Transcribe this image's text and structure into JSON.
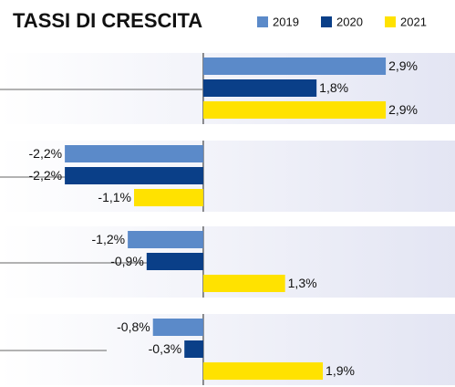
{
  "chart_data": {
    "type": "bar",
    "orientation": "horizontal",
    "title": "TASSI DI CRESCITA",
    "categories": [
      null,
      null,
      null,
      null
    ],
    "series": [
      {
        "name": "2019",
        "color": "#5b8ac9",
        "values": [
          2.9,
          -2.2,
          -1.2,
          -0.8
        ],
        "value_labels": [
          "2,9%",
          "-2,2%",
          "-1,2%",
          "-0,8%"
        ]
      },
      {
        "name": "2020",
        "color": "#0a3f88",
        "values": [
          1.8,
          -2.2,
          -0.9,
          -0.3
        ],
        "value_labels": [
          "1,8%",
          "-2,2%",
          "-0,9%",
          "-0,3%"
        ]
      },
      {
        "name": "2021",
        "color": "#ffe200",
        "values": [
          2.9,
          -1.1,
          1.3,
          1.9
        ],
        "value_labels": [
          "2,9%",
          "-1,1%",
          "1,3%",
          "1,9%"
        ]
      }
    ],
    "xlim": [
      -3.23,
      4.0
    ],
    "legend": "top"
  }
}
